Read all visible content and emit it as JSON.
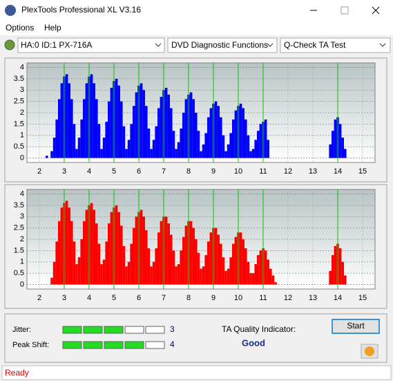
{
  "title": "PlexTools Professional XL V3.16",
  "menu": [
    "Options",
    "Help"
  ],
  "toolbar": {
    "drive": "HA:0 ID:1  PX-716A",
    "function": "DVD Diagnostic Functions",
    "test": "Q-Check TA Test"
  },
  "chart_data": [
    {
      "type": "bar",
      "color": "#0000ff",
      "marker_color": "#00c800",
      "xlim": [
        1.5,
        15.5
      ],
      "xticks": [
        2,
        3,
        4,
        5,
        6,
        7,
        8,
        9,
        10,
        11,
        12,
        13,
        14,
        15
      ],
      "ylim": [
        -0.2,
        4.2
      ],
      "yticks": [
        0,
        0.5,
        1,
        1.5,
        2,
        2.5,
        3,
        3.5,
        4
      ],
      "grid": true,
      "x_markers": [
        3,
        4,
        5,
        6,
        7,
        8,
        9,
        10,
        11,
        14
      ],
      "x": [
        2.3,
        2.5,
        2.6,
        2.7,
        2.8,
        2.9,
        3.0,
        3.1,
        3.2,
        3.3,
        3.4,
        3.5,
        3.6,
        3.7,
        3.8,
        3.9,
        4.0,
        4.1,
        4.2,
        4.3,
        4.4,
        4.5,
        4.6,
        4.7,
        4.8,
        4.9,
        5.0,
        5.1,
        5.2,
        5.3,
        5.4,
        5.5,
        5.6,
        5.7,
        5.8,
        5.9,
        6.0,
        6.1,
        6.2,
        6.3,
        6.4,
        6.5,
        6.6,
        6.7,
        6.8,
        6.9,
        7.0,
        7.1,
        7.2,
        7.3,
        7.4,
        7.5,
        7.6,
        7.7,
        7.8,
        7.9,
        8.0,
        8.1,
        8.2,
        8.3,
        8.4,
        8.5,
        8.6,
        8.7,
        8.8,
        8.9,
        9.0,
        9.1,
        9.2,
        9.3,
        9.4,
        9.5,
        9.6,
        9.7,
        9.8,
        9.9,
        10.0,
        10.1,
        10.2,
        10.3,
        10.4,
        10.5,
        10.6,
        10.7,
        10.8,
        10.9,
        11.0,
        11.1,
        11.2,
        13.7,
        13.8,
        13.9,
        14.0,
        14.1,
        14.2,
        14.3
      ],
      "values": [
        0.1,
        0.3,
        0.9,
        1.7,
        2.6,
        3.3,
        3.6,
        3.7,
        3.3,
        2.6,
        1.5,
        0.4,
        0.9,
        1.7,
        2.6,
        3.3,
        3.6,
        3.7,
        3.3,
        2.6,
        1.5,
        0.4,
        0.9,
        1.6,
        2.5,
        3.1,
        3.4,
        3.5,
        3.2,
        2.5,
        1.4,
        0.4,
        0.8,
        1.5,
        2.3,
        2.9,
        3.2,
        3.3,
        3.0,
        2.3,
        1.3,
        0.4,
        0.8,
        1.4,
        2.2,
        2.7,
        3.0,
        3.1,
        2.8,
        2.2,
        1.2,
        0.4,
        0.7,
        1.3,
        2.0,
        2.6,
        2.8,
        2.9,
        2.6,
        2.0,
        1.2,
        0.3,
        0.6,
        1.1,
        1.8,
        2.2,
        2.4,
        2.5,
        2.3,
        1.8,
        1.0,
        0.3,
        0.6,
        1.1,
        1.7,
        2.1,
        2.3,
        2.4,
        2.2,
        1.7,
        1.0,
        0.3,
        0.4,
        0.8,
        1.2,
        1.5,
        1.6,
        1.7,
        0.8,
        0.6,
        1.2,
        1.7,
        1.8,
        1.5,
        0.9,
        0.4
      ]
    },
    {
      "type": "bar",
      "color": "#ff0000",
      "marker_color": "#00c800",
      "xlim": [
        1.5,
        15.5
      ],
      "xticks": [
        2,
        3,
        4,
        5,
        6,
        7,
        8,
        9,
        10,
        11,
        12,
        13,
        14,
        15
      ],
      "ylim": [
        -0.2,
        4.2
      ],
      "yticks": [
        0,
        0.5,
        1,
        1.5,
        2,
        2.5,
        3,
        3.5,
        4
      ],
      "grid": true,
      "x_markers": [
        3,
        4,
        5,
        6,
        7,
        8,
        9,
        10,
        11,
        14
      ],
      "x": [
        2.5,
        2.6,
        2.7,
        2.8,
        2.9,
        3.0,
        3.1,
        3.2,
        3.3,
        3.4,
        3.5,
        3.6,
        3.7,
        3.8,
        3.9,
        4.0,
        4.1,
        4.2,
        4.3,
        4.4,
        4.5,
        4.6,
        4.7,
        4.8,
        4.9,
        5.0,
        5.1,
        5.2,
        5.3,
        5.4,
        5.5,
        5.6,
        5.7,
        5.8,
        5.9,
        6.0,
        6.1,
        6.2,
        6.3,
        6.4,
        6.5,
        6.6,
        6.7,
        6.8,
        6.9,
        7.0,
        7.1,
        7.2,
        7.3,
        7.4,
        7.5,
        7.6,
        7.7,
        7.8,
        7.9,
        8.0,
        8.1,
        8.2,
        8.3,
        8.4,
        8.5,
        8.6,
        8.7,
        8.8,
        8.9,
        9.0,
        9.1,
        9.2,
        9.3,
        9.4,
        9.5,
        9.6,
        9.7,
        9.8,
        9.9,
        10.0,
        10.1,
        10.2,
        10.3,
        10.4,
        10.5,
        10.6,
        10.7,
        10.8,
        10.9,
        11.0,
        11.1,
        11.2,
        11.3,
        11.4,
        11.5,
        13.7,
        13.8,
        13.9,
        14.0,
        14.1,
        14.2,
        14.3
      ],
      "values": [
        0.3,
        1.0,
        1.9,
        2.8,
        3.4,
        3.6,
        3.7,
        3.4,
        2.8,
        1.9,
        0.9,
        1.2,
        2.0,
        2.8,
        3.3,
        3.5,
        3.6,
        3.3,
        2.7,
        1.8,
        0.9,
        1.1,
        1.9,
        2.7,
        3.2,
        3.4,
        3.5,
        3.2,
        2.6,
        1.7,
        0.8,
        1.0,
        1.8,
        2.5,
        3.0,
        3.2,
        3.3,
        3.0,
        2.4,
        1.6,
        0.8,
        1.0,
        1.6,
        2.3,
        2.8,
        3.0,
        3.0,
        2.7,
        2.2,
        1.5,
        0.8,
        0.9,
        1.5,
        2.1,
        2.6,
        2.8,
        2.8,
        2.5,
        2.0,
        1.4,
        0.7,
        0.8,
        1.3,
        1.9,
        2.3,
        2.5,
        2.5,
        2.2,
        1.8,
        1.2,
        0.6,
        0.7,
        1.2,
        1.8,
        2.1,
        2.3,
        2.3,
        2.0,
        1.6,
        1.0,
        0.5,
        0.5,
        0.9,
        1.3,
        1.5,
        1.6,
        1.5,
        1.1,
        0.7,
        0.4,
        0.1,
        0.6,
        1.3,
        1.7,
        1.8,
        1.6,
        1.0,
        0.4
      ]
    }
  ],
  "jitter": {
    "label": "Jitter:",
    "value": 3
  },
  "peak_shift": {
    "label": "Peak Shift:",
    "value": 4
  },
  "ta_quality": {
    "label": "TA Quality Indicator:",
    "value": "Good"
  },
  "start_button": "Start",
  "status": "Ready"
}
